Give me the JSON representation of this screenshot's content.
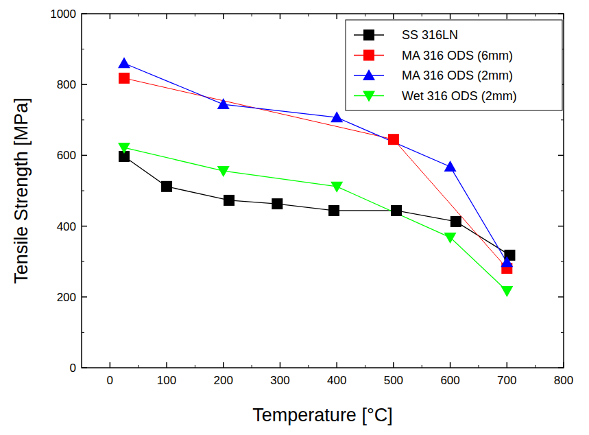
{
  "chart_data": {
    "type": "line",
    "x_label": "Temperature [°C]",
    "y_label": "Tensile Strength [MPa]",
    "xlim": [
      -50,
      800
    ],
    "xticks": [
      0,
      100,
      200,
      300,
      400,
      500,
      600,
      700,
      800
    ],
    "ylim": [
      0,
      1000
    ],
    "yticks": [
      0,
      200,
      400,
      600,
      800,
      1000
    ],
    "grid": false,
    "legend": "upper right",
    "series": [
      {
        "name": "SS 316LN",
        "color": "#000000",
        "marker": "square",
        "line_style": "solid",
        "x": [
          25,
          100,
          210,
          295,
          395,
          505,
          610,
          705
        ],
        "values": [
          597,
          512,
          473,
          463,
          444,
          444,
          413,
          318
        ]
      },
      {
        "name": "MA 316 ODS (6mm)",
        "color": "#ff0000",
        "marker": "square",
        "line_style": "solid",
        "x": [
          25,
          500,
          700
        ],
        "values": [
          818,
          645,
          281
        ]
      },
      {
        "name": "MA 316 ODS (2mm)",
        "color": "#0000ff",
        "marker": "triangle",
        "line_style": "solid",
        "x": [
          25,
          200,
          400,
          600,
          700
        ],
        "values": [
          860,
          744,
          707,
          568,
          298
        ]
      },
      {
        "name": "Wet 316 ODS (2mm)",
        "color": "#00ff00",
        "marker": "triangle-down",
        "line_style": "solid",
        "x": [
          25,
          200,
          400,
          600,
          700
        ],
        "values": [
          622,
          556,
          512,
          368,
          217
        ]
      }
    ]
  }
}
